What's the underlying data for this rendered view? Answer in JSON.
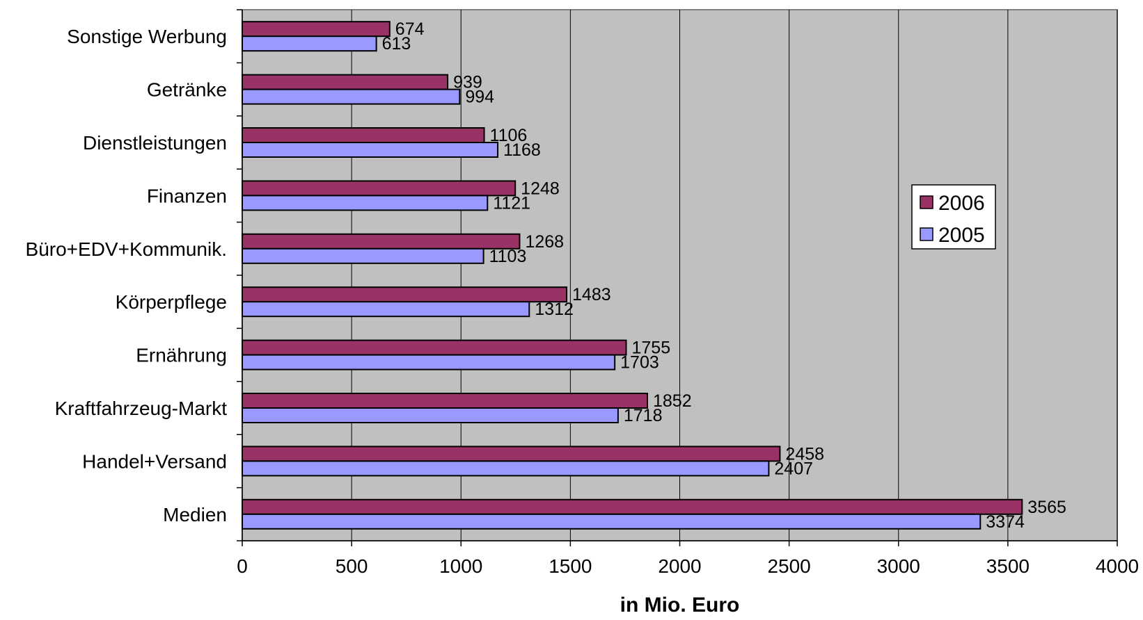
{
  "chart_data": {
    "type": "bar",
    "orientation": "horizontal",
    "categories": [
      "Sonstige Werbung",
      "Getränke",
      "Dienstleistungen",
      "Finanzen",
      "Büro+EDV+Kommunik.",
      "Körperpflege",
      "Ernährung",
      "Kraftfahrzeug-Markt",
      "Handel+Versand",
      "Medien"
    ],
    "series": [
      {
        "name": "2006",
        "color": "#993366",
        "values": [
          674,
          939,
          1106,
          1248,
          1268,
          1483,
          1755,
          1852,
          2458,
          3565
        ]
      },
      {
        "name": "2005",
        "color": "#9999ff",
        "values": [
          613,
          994,
          1168,
          1121,
          1103,
          1312,
          1703,
          1718,
          2407,
          3374
        ]
      }
    ],
    "xlabel": "in Mio. Euro",
    "ylabel": "",
    "xlim": [
      0,
      4000
    ],
    "xticks": [
      "0",
      "500",
      "1000",
      "1500",
      "2000",
      "2500",
      "3000",
      "3500",
      "4000"
    ],
    "grid": "vertical",
    "plot_background": "#c0c0c0",
    "legend_position": "right",
    "data_labels": true
  }
}
